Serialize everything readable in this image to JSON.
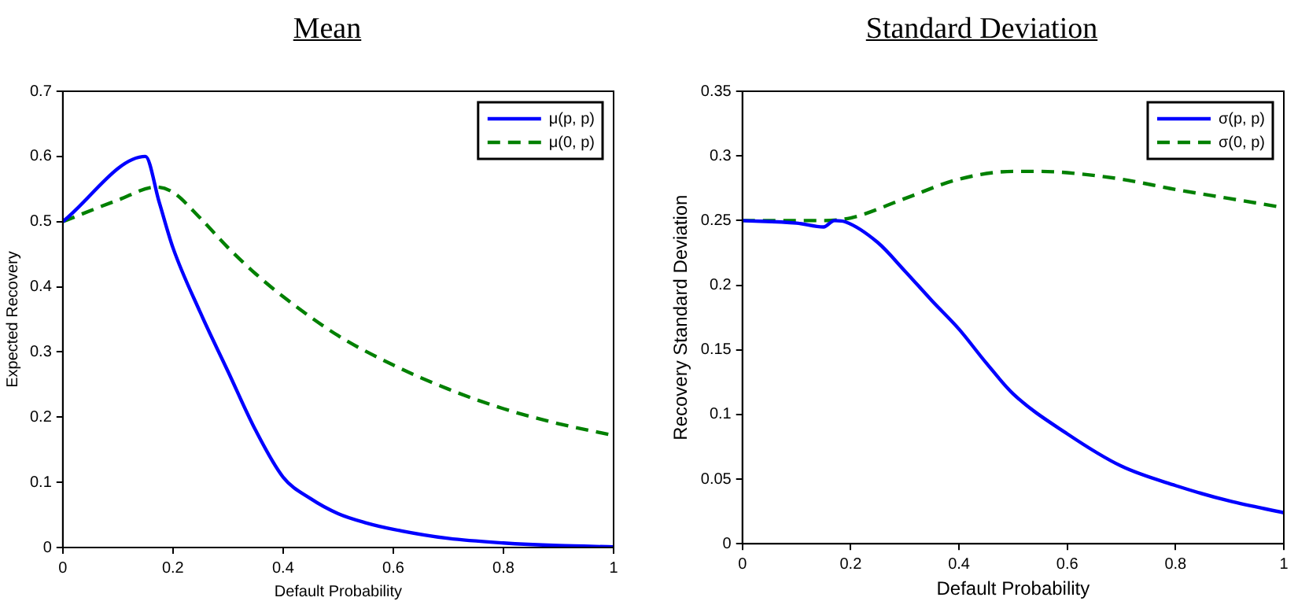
{
  "chart_data": [
    {
      "type": "line",
      "title": "Mean",
      "xlabel": "Default Probability",
      "ylabel": "Expected Recovery",
      "xlim": [
        0,
        1
      ],
      "xticks": [
        0,
        0.2,
        0.4,
        0.6,
        0.8,
        1
      ],
      "ylim": [
        0,
        0.7
      ],
      "yticks": [
        0,
        0.1,
        0.2,
        0.3,
        0.4,
        0.5,
        0.6,
        0.7
      ],
      "grid": false,
      "legend": "top right",
      "series": [
        {
          "name": "μ(p, p)",
          "color": "#0000ff",
          "line_style": "solid",
          "x": [
            0,
            0.15,
            0.175,
            0.2,
            0.25,
            0.3,
            0.35,
            0.4,
            0.45,
            0.5,
            0.55,
            0.6,
            0.7,
            0.8,
            0.9,
            1
          ],
          "values": [
            0.5,
            0.6,
            0.53,
            0.46,
            0.36,
            0.27,
            0.18,
            0.108,
            0.075,
            0.052,
            0.038,
            0.028,
            0.014,
            0.007,
            0.003,
            0.001
          ]
        },
        {
          "name": "μ(0, p)",
          "color": "#008000",
          "line_style": "dashed",
          "x": [
            0,
            0.1,
            0.17,
            0.2,
            0.25,
            0.3,
            0.35,
            0.4,
            0.5,
            0.6,
            0.7,
            0.8,
            0.9,
            1
          ],
          "values": [
            0.5,
            0.533,
            0.553,
            0.545,
            0.505,
            0.46,
            0.42,
            0.385,
            0.325,
            0.28,
            0.243,
            0.213,
            0.19,
            0.172
          ]
        }
      ]
    },
    {
      "type": "line",
      "title": "Standard Deviation",
      "xlabel": "Default Probability",
      "ylabel": "Recovery Standard Deviation",
      "xlim": [
        0,
        1
      ],
      "xticks": [
        0,
        0.2,
        0.4,
        0.6,
        0.8,
        1
      ],
      "ylim": [
        0,
        0.35
      ],
      "yticks": [
        0,
        0.05,
        0.1,
        0.15,
        0.2,
        0.25,
        0.3,
        0.35
      ],
      "grid": false,
      "legend": "top right",
      "series": [
        {
          "name": "σ(p, p)",
          "color": "#0000ff",
          "line_style": "solid",
          "x": [
            0,
            0.1,
            0.15,
            0.17,
            0.19,
            0.25,
            0.3,
            0.35,
            0.4,
            0.45,
            0.5,
            0.6,
            0.7,
            0.8,
            0.9,
            1
          ],
          "values": [
            0.25,
            0.248,
            0.245,
            0.25,
            0.249,
            0.233,
            0.211,
            0.188,
            0.166,
            0.14,
            0.116,
            0.085,
            0.06,
            0.045,
            0.033,
            0.024
          ]
        },
        {
          "name": "σ(0, p)",
          "color": "#008000",
          "line_style": "dashed",
          "x": [
            0,
            0.15,
            0.2,
            0.3,
            0.4,
            0.5,
            0.55,
            0.6,
            0.7,
            0.8,
            0.9,
            1
          ],
          "values": [
            0.25,
            0.25,
            0.252,
            0.267,
            0.282,
            0.288,
            0.288,
            0.287,
            0.282,
            0.274,
            0.267,
            0.26
          ]
        }
      ]
    }
  ]
}
